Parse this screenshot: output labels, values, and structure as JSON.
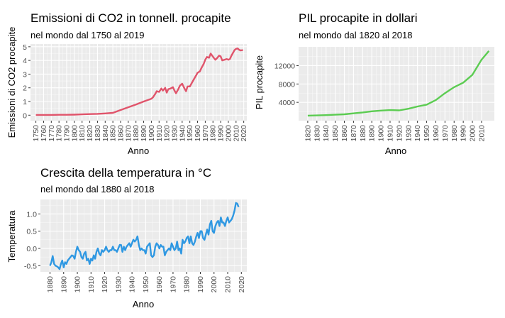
{
  "chart_data": [
    {
      "type": "line",
      "title": "Emissioni di CO2 in tonnell. procapite",
      "subtitle": "nel mondo dal 1750 al 2019",
      "xlabel": "Anno",
      "ylabel": "Emissioni di CO2 procapite",
      "color": "#e0546b",
      "xlim": [
        1743,
        2024
      ],
      "ylim": [
        -0.4,
        5.2
      ],
      "xticks": [
        1750,
        1760,
        1770,
        1780,
        1790,
        1800,
        1810,
        1820,
        1830,
        1840,
        1850,
        1860,
        1870,
        1880,
        1890,
        1900,
        1910,
        1920,
        1930,
        1940,
        1950,
        1960,
        1970,
        1980,
        1990,
        2000,
        2010,
        2020
      ],
      "yticks": [
        0,
        1,
        2,
        3,
        4,
        5
      ],
      "x": [
        1750,
        1760,
        1770,
        1780,
        1790,
        1800,
        1810,
        1820,
        1830,
        1840,
        1850,
        1860,
        1870,
        1880,
        1890,
        1900,
        1902,
        1905,
        1907,
        1910,
        1913,
        1915,
        1918,
        1920,
        1922,
        1925,
        1928,
        1930,
        1932,
        1935,
        1937,
        1940,
        1943,
        1945,
        1947,
        1950,
        1953,
        1955,
        1958,
        1960,
        1963,
        1965,
        1968,
        1970,
        1972,
        1975,
        1977,
        1979,
        1981,
        1983,
        1985,
        1988,
        1990,
        1992,
        1995,
        1998,
        2000,
        2002,
        2004,
        2006,
        2008,
        2010,
        2012,
        2014,
        2016,
        2019
      ],
      "y": [
        0.02,
        0.02,
        0.02,
        0.03,
        0.03,
        0.04,
        0.06,
        0.08,
        0.1,
        0.13,
        0.17,
        0.38,
        0.58,
        0.78,
        1.0,
        1.2,
        1.3,
        1.55,
        1.75,
        1.7,
        1.95,
        1.8,
        2.0,
        1.65,
        1.9,
        1.95,
        2.05,
        1.8,
        1.6,
        1.9,
        2.15,
        2.3,
        1.95,
        1.75,
        2.1,
        2.1,
        2.4,
        2.6,
        2.9,
        3.1,
        3.2,
        3.45,
        3.75,
        4.05,
        4.25,
        4.2,
        4.5,
        4.35,
        4.2,
        4.05,
        4.15,
        4.35,
        4.3,
        4.0,
        4.05,
        4.1,
        4.05,
        4.1,
        4.35,
        4.55,
        4.75,
        4.85,
        4.88,
        4.78,
        4.73,
        4.76
      ]
    },
    {
      "type": "line",
      "title": "PIL procapite in dollari",
      "subtitle": "nel mondo dal 1820 al 2018",
      "xlabel": "Anno",
      "ylabel": "PIL procapite",
      "color": "#5ccc52",
      "xlim": [
        1810,
        2024
      ],
      "ylim": [
        0,
        16100
      ],
      "xticks": [
        1820,
        1830,
        1840,
        1850,
        1860,
        1870,
        1880,
        1890,
        1900,
        1910,
        1920,
        1930,
        1940,
        1950,
        1960,
        1970,
        1980,
        1990,
        2000,
        2010
      ],
      "yticks": [
        4000,
        8000,
        12000
      ],
      "x": [
        1820,
        1830,
        1840,
        1850,
        1860,
        1870,
        1880,
        1890,
        1900,
        1910,
        1920,
        1930,
        1940,
        1950,
        1960,
        1970,
        1980,
        1990,
        2000,
        2010,
        2018
      ],
      "y": [
        1100,
        1150,
        1200,
        1300,
        1400,
        1600,
        1800,
        2050,
        2200,
        2300,
        2250,
        2600,
        3100,
        3500,
        4500,
        6000,
        7300,
        8300,
        10000,
        13300,
        15200
      ]
    },
    {
      "type": "line",
      "title": "Crescita della temperatura in °C",
      "subtitle": "nel mondo dal 1880 al 2018",
      "xlabel": "Anno",
      "ylabel": "Temperatura",
      "color": "#2f98e2",
      "xlim": [
        1873,
        2024
      ],
      "ylim": [
        -0.68,
        1.42
      ],
      "xticks": [
        1880,
        1890,
        1900,
        1910,
        1920,
        1930,
        1940,
        1950,
        1960,
        1970,
        1980,
        1990,
        2000,
        2010,
        2020
      ],
      "yticks": [
        -0.5,
        0.0,
        0.5,
        1.0
      ],
      "x": [
        1880,
        1881,
        1882,
        1883,
        1884,
        1885,
        1886,
        1887,
        1888,
        1889,
        1890,
        1891,
        1892,
        1893,
        1894,
        1895,
        1896,
        1897,
        1898,
        1899,
        1900,
        1901,
        1902,
        1903,
        1904,
        1905,
        1906,
        1907,
        1908,
        1909,
        1910,
        1911,
        1912,
        1913,
        1914,
        1915,
        1916,
        1917,
        1918,
        1919,
        1920,
        1921,
        1922,
        1923,
        1924,
        1925,
        1926,
        1927,
        1928,
        1929,
        1930,
        1931,
        1932,
        1933,
        1934,
        1935,
        1936,
        1937,
        1938,
        1939,
        1940,
        1941,
        1942,
        1943,
        1944,
        1945,
        1946,
        1947,
        1948,
        1949,
        1950,
        1951,
        1952,
        1953,
        1954,
        1955,
        1956,
        1957,
        1958,
        1959,
        1960,
        1961,
        1962,
        1963,
        1964,
        1965,
        1966,
        1967,
        1968,
        1969,
        1970,
        1971,
        1972,
        1973,
        1974,
        1975,
        1976,
        1977,
        1978,
        1979,
        1980,
        1981,
        1982,
        1983,
        1984,
        1985,
        1986,
        1987,
        1988,
        1989,
        1990,
        1991,
        1992,
        1993,
        1994,
        1995,
        1996,
        1997,
        1998,
        1999,
        2000,
        2001,
        2002,
        2003,
        2004,
        2005,
        2006,
        2007,
        2008,
        2009,
        2010,
        2011,
        2012,
        2013,
        2014,
        2015,
        2016,
        2017,
        2018
      ],
      "y": [
        -0.5,
        -0.4,
        -0.22,
        -0.45,
        -0.5,
        -0.52,
        -0.55,
        -0.6,
        -0.45,
        -0.35,
        -0.55,
        -0.4,
        -0.45,
        -0.35,
        -0.3,
        -0.25,
        -0.2,
        -0.22,
        -0.3,
        -0.1,
        0.05,
        -0.05,
        -0.1,
        -0.25,
        -0.3,
        -0.15,
        -0.1,
        -0.35,
        -0.3,
        -0.45,
        -0.3,
        -0.35,
        -0.2,
        -0.3,
        -0.1,
        0.0,
        -0.15,
        -0.2,
        -0.05,
        -0.1,
        -0.05,
        0.05,
        -0.05,
        -0.1,
        -0.05,
        -0.05,
        0.05,
        -0.05,
        -0.05,
        -0.1,
        0.0,
        0.1,
        0.1,
        -0.1,
        0.05,
        -0.05,
        0.05,
        0.1,
        0.15,
        0.05,
        0.15,
        0.25,
        0.2,
        0.25,
        0.35,
        0.1,
        -0.05,
        0.0,
        -0.05,
        -0.05,
        -0.15,
        0.05,
        0.1,
        0.15,
        -0.2,
        -0.25,
        -0.2,
        0.05,
        0.15,
        0.1,
        0.0,
        0.1,
        0.05,
        0.05,
        -0.2,
        -0.1,
        -0.05,
        0.0,
        -0.05,
        0.15,
        0.05,
        -0.05,
        0.0,
        0.2,
        -0.05,
        0.0,
        -0.15,
        0.25,
        0.15,
        0.2,
        0.3,
        0.35,
        0.15,
        0.35,
        0.15,
        0.1,
        0.2,
        0.35,
        0.45,
        0.3,
        0.5,
        0.5,
        0.3,
        0.25,
        0.4,
        0.55,
        0.4,
        0.7,
        0.8,
        0.5,
        0.45,
        0.65,
        0.75,
        0.8,
        0.65,
        0.9,
        0.75,
        0.75,
        0.65,
        0.8,
        0.9,
        0.75,
        0.8,
        0.85,
        0.95,
        1.1,
        1.32,
        1.3,
        1.2
      ]
    }
  ]
}
